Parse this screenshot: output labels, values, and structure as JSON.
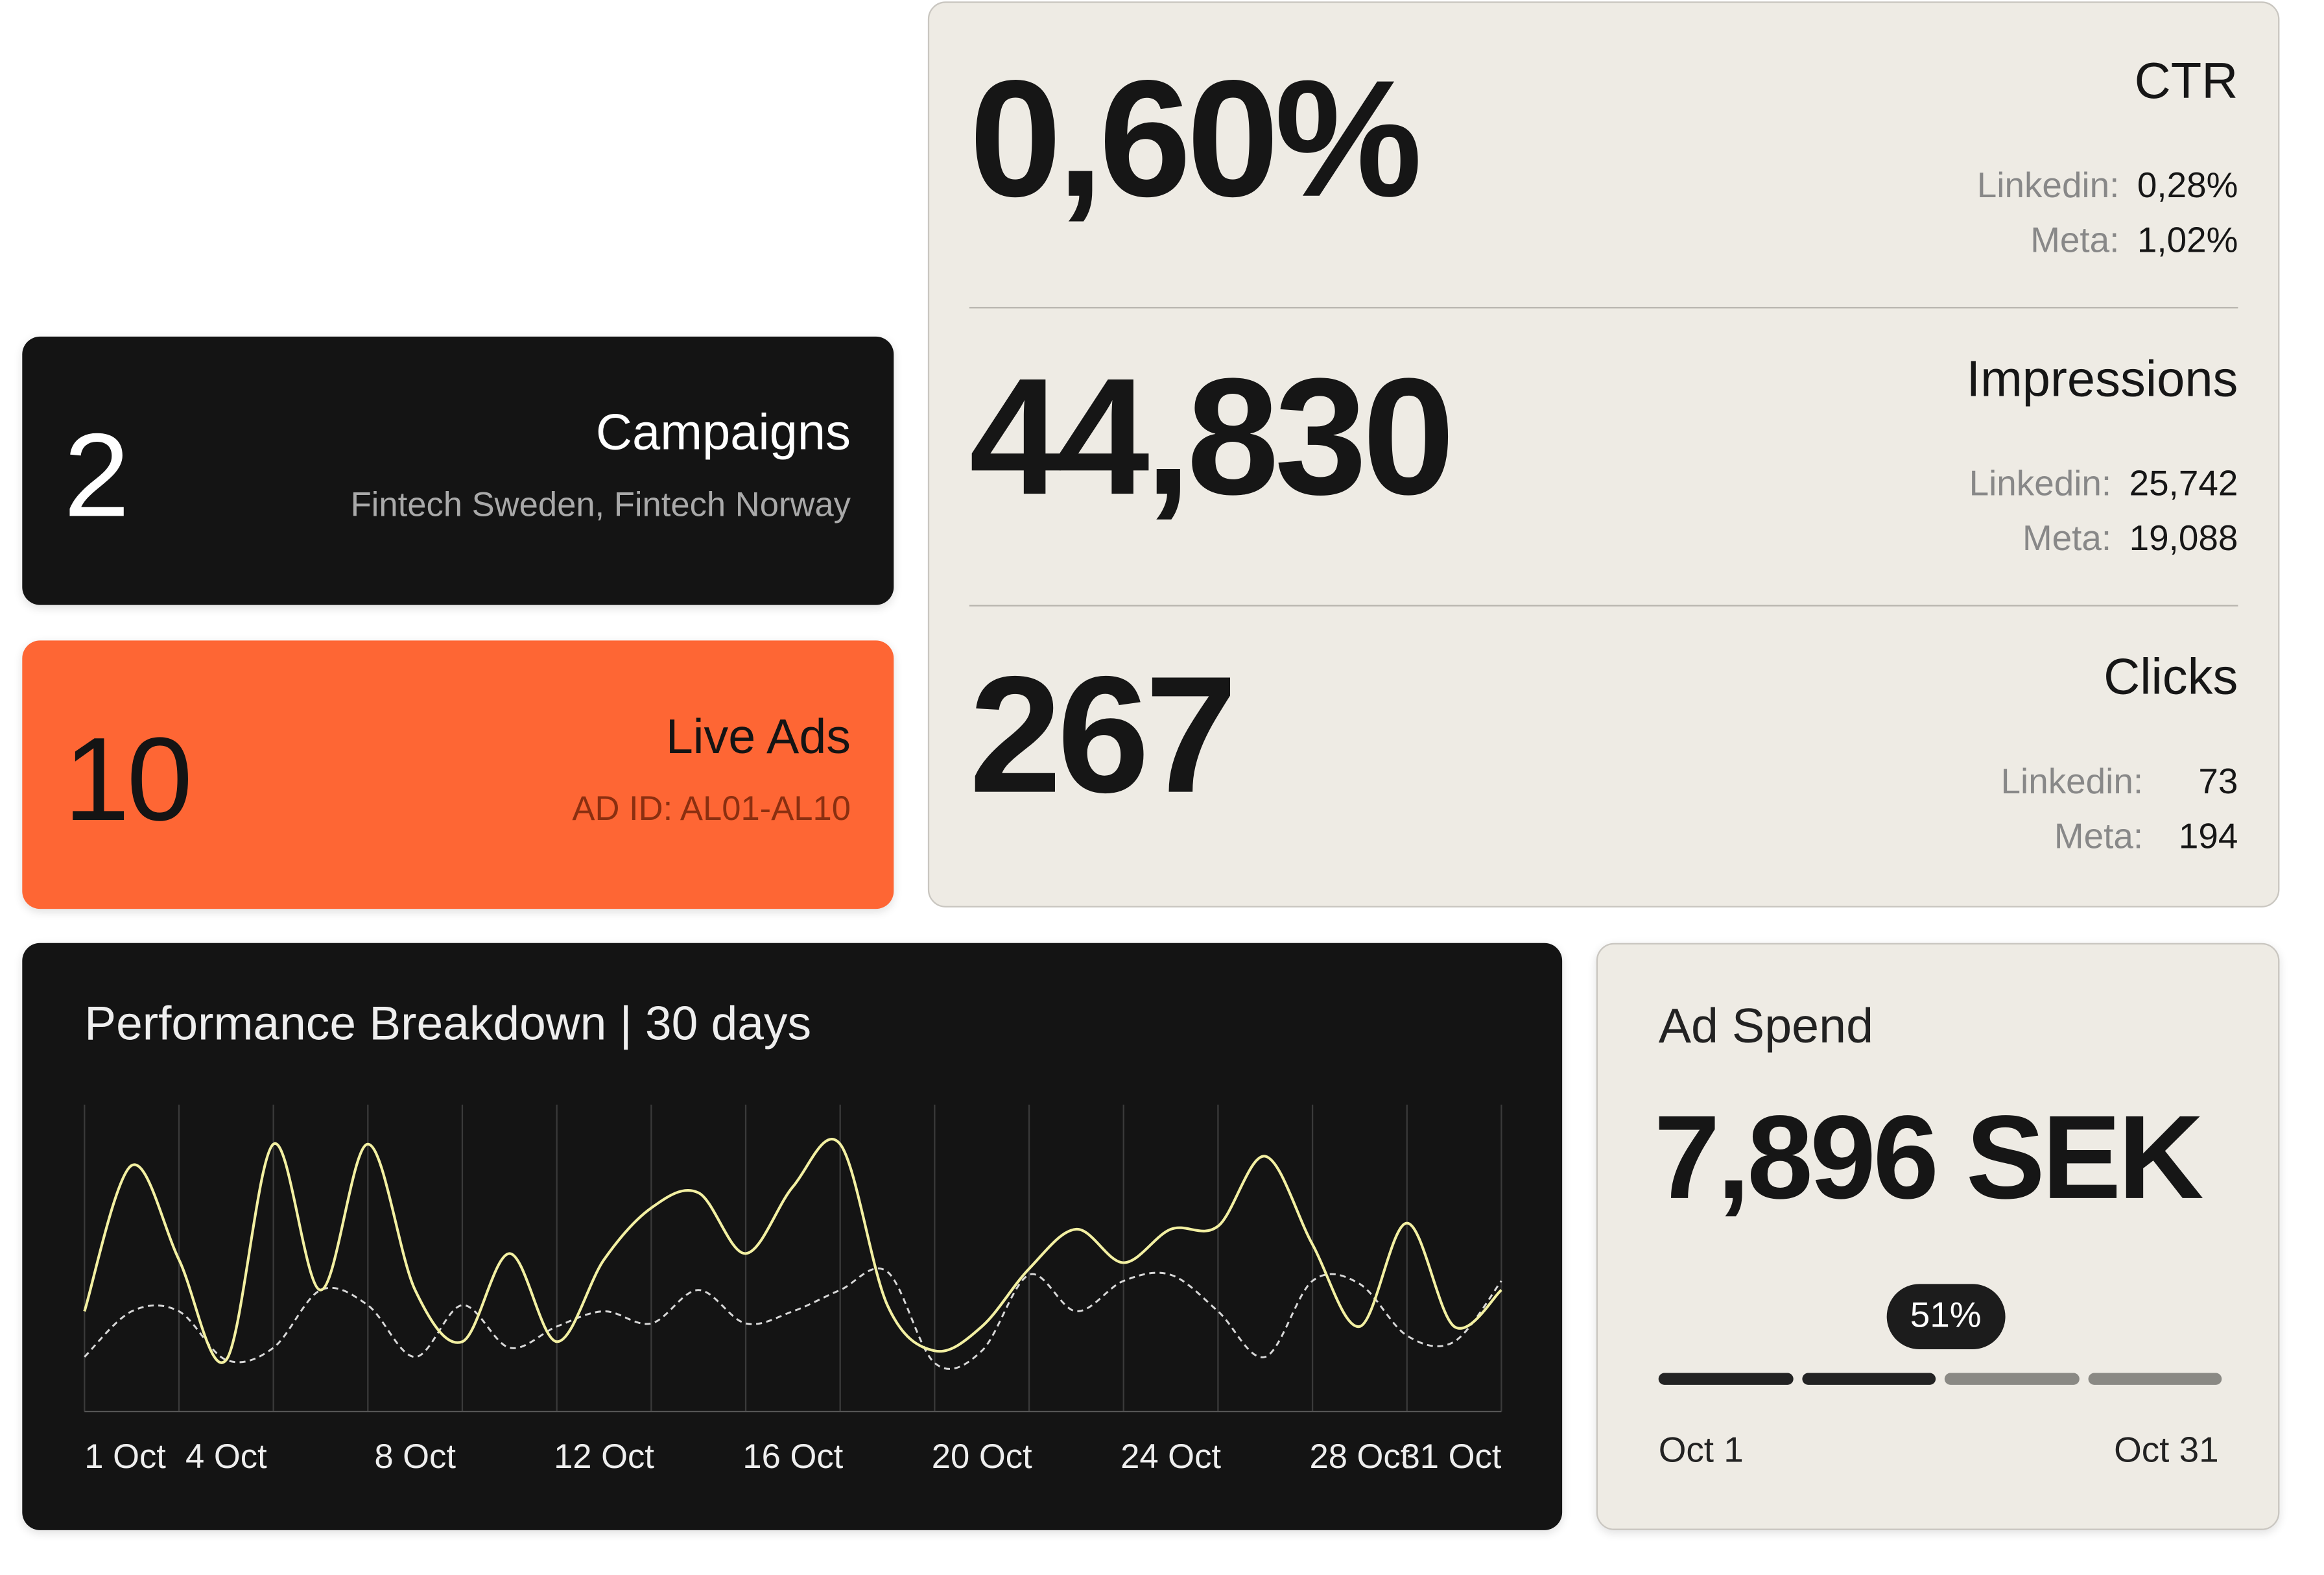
{
  "campaigns": {
    "value": "2",
    "label": "Campaigns",
    "detail": "Fintech Sweden, Fintech Norway"
  },
  "live_ads": {
    "value": "10",
    "label": "Live Ads",
    "detail": "AD ID: AL01-AL10"
  },
  "metrics": [
    {
      "value": "0,60%",
      "label": "CTR",
      "breakdown": [
        {
          "source": "Linkedin:",
          "value": "0,28%"
        },
        {
          "source": "Meta:",
          "value": "1,02%"
        }
      ]
    },
    {
      "value": "44,830",
      "label": "Impressions",
      "breakdown": [
        {
          "source": "Linkedin:",
          "value": "25,742"
        },
        {
          "source": "Meta:",
          "value": "19,088"
        }
      ]
    },
    {
      "value": "267",
      "label": "Clicks",
      "breakdown": [
        {
          "source": "Linkedin:",
          "value": "73"
        },
        {
          "source": "Meta:",
          "value": "194"
        }
      ]
    }
  ],
  "chart_data": {
    "type": "line",
    "title": "Performance Breakdown | 30 days",
    "categories": [
      "1 Oct",
      null,
      null,
      "4 Oct",
      null,
      null,
      null,
      "8 Oct",
      null,
      null,
      null,
      "12 Oct",
      null,
      null,
      null,
      "16 Oct",
      null,
      null,
      null,
      "20 Oct",
      null,
      null,
      null,
      "24 Oct",
      null,
      null,
      null,
      "28 Oct",
      null,
      null,
      "31 Oct"
    ],
    "ylim": [
      0,
      100
    ],
    "series": [
      {
        "color": "#f3f0a2",
        "style": "solid",
        "values": [
          32,
          80,
          49,
          16,
          87,
          39,
          87,
          39,
          22,
          51,
          22,
          49,
          66,
          71,
          51,
          73,
          87,
          34,
          19,
          27,
          46,
          59,
          48,
          59,
          60,
          83,
          54,
          27,
          61,
          27,
          39
        ]
      },
      {
        "color": "#d8d8d8",
        "style": "dashed",
        "values": [
          17,
          32,
          32,
          16,
          20,
          39,
          34,
          17,
          34,
          20,
          27,
          32,
          28,
          39,
          28,
          32,
          39,
          45,
          15,
          19,
          44,
          32,
          42,
          44,
          32,
          17,
          42,
          41,
          24,
          22,
          42
        ]
      }
    ]
  },
  "ad_spend": {
    "title": "Ad Spend",
    "value": "7,896 SEK",
    "progress": {
      "value": 51,
      "label": "51%",
      "range": [
        0,
        100
      ]
    },
    "start": "Oct 1",
    "end": "Oct 31"
  }
}
